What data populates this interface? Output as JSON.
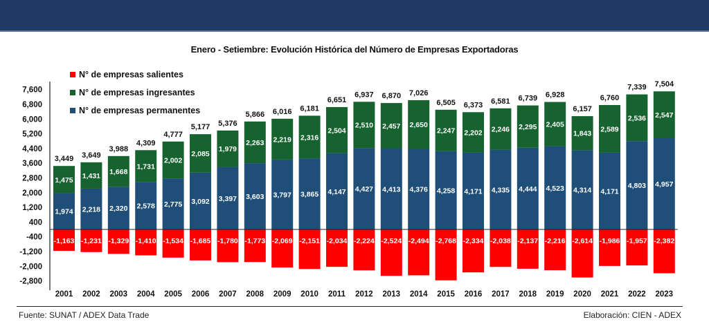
{
  "header": {
    "color": "#213965"
  },
  "chart_data": {
    "type": "bar",
    "stacked": true,
    "title": "Enero - Setiembre: Evolución Histórica del Número de Empresas Exportadoras",
    "xlabel": "",
    "ylabel": "",
    "ylim": [
      -2800,
      7600
    ],
    "yticks": [
      7600,
      6800,
      6000,
      5200,
      4400,
      3600,
      2800,
      2000,
      1200,
      400,
      -400,
      -1200,
      -2000,
      -2800
    ],
    "ytick_labels": [
      "7,600",
      "6,800",
      "6,000",
      "5,200",
      "4,400",
      "3,600",
      "2,800",
      "2,000",
      "1,200",
      "400",
      "-400",
      "-1,200",
      "-2,000",
      "-2,800"
    ],
    "grid": false,
    "legend_position": "top-left",
    "categories": [
      "2001",
      "2002",
      "2003",
      "2004",
      "2005",
      "2006",
      "2007",
      "2008",
      "2009",
      "2010",
      "2011",
      "2012",
      "2013",
      "2014",
      "2015",
      "2016",
      "2017",
      "2018",
      "2019",
      "2020",
      "2021",
      "2022",
      "2023"
    ],
    "series": [
      {
        "name": "N° de empresas salientes",
        "color": "#ff0000",
        "values": [
          -1163,
          -1231,
          -1329,
          -1410,
          -1534,
          -1685,
          -1780,
          -1773,
          -2069,
          -2151,
          -2034,
          -2224,
          -2524,
          -2494,
          -2768,
          -2334,
          -2038,
          -2137,
          -2216,
          -2614,
          -1986,
          -1957,
          -2382
        ],
        "labels": [
          "-1,163",
          "-1,231",
          "-1,329",
          "-1,410",
          "-1,534",
          "-1,685",
          "-1,780",
          "-1,773",
          "-2,069",
          "-2,151",
          "-2,034",
          "-2,224",
          "-2,524",
          "-2,494",
          "-2,768",
          "-2,334",
          "-2,038",
          "-2,137",
          "-2,216",
          "-2,614",
          "-1,986",
          "-1,957",
          "-2,382"
        ]
      },
      {
        "name": "N° de empresas ingresantes",
        "color": "#17632f",
        "values": [
          1475,
          1431,
          1668,
          1731,
          2002,
          2085,
          1979,
          2263,
          2219,
          2316,
          2504,
          2510,
          2457,
          2650,
          2247,
          2202,
          2246,
          2295,
          2405,
          1843,
          2589,
          2536,
          2547
        ],
        "labels": [
          "1,475",
          "1,431",
          "1,668",
          "1,731",
          "2,002",
          "2,085",
          "1,979",
          "2,263",
          "2,219",
          "2,316",
          "2,504",
          "2,510",
          "2,457",
          "2,650",
          "2,247",
          "2,202",
          "2,246",
          "2,295",
          "2,405",
          "1,843",
          "2,589",
          "2,536",
          "2,547"
        ]
      },
      {
        "name": "N° de empresas permanentes",
        "color": "#1f4e79",
        "values": [
          1974,
          2218,
          2320,
          2578,
          2775,
          3092,
          3397,
          3603,
          3797,
          3865,
          4147,
          4427,
          4413,
          4376,
          4258,
          4171,
          4335,
          4444,
          4523,
          4314,
          4171,
          4803,
          4957
        ],
        "labels": [
          "1,974",
          "2,218",
          "2,320",
          "2,578",
          "2,775",
          "3,092",
          "3,397",
          "3,603",
          "3,797",
          "3,865",
          "4,147",
          "4,427",
          "4,413",
          "4,376",
          "4,258",
          "4,171",
          "4,335",
          "4,444",
          "4,523",
          "4,314",
          "4,171",
          "4,803",
          "4,957"
        ]
      }
    ],
    "totals": [
      3449,
      3649,
      3988,
      4309,
      4777,
      5177,
      5376,
      5866,
      6016,
      6181,
      6651,
      6937,
      6870,
      7026,
      6505,
      6373,
      6581,
      6739,
      6928,
      6157,
      6760,
      7339,
      7504
    ],
    "total_labels": [
      "3,449",
      "3,649",
      "3,988",
      "4,309",
      "4,777",
      "5,177",
      "5,376",
      "5,866",
      "6,016",
      "6,181",
      "6,651",
      "6,937",
      "6,870",
      "7,026",
      "6,505",
      "6,373",
      "6,581",
      "6,739",
      "6,928",
      "6,157",
      "6,760",
      "7,339",
      "7,504"
    ]
  },
  "footer": {
    "source": "Fuente: SUNAT / ADEX Data Trade",
    "credit": "Elaboración: CIEN - ADEX"
  }
}
